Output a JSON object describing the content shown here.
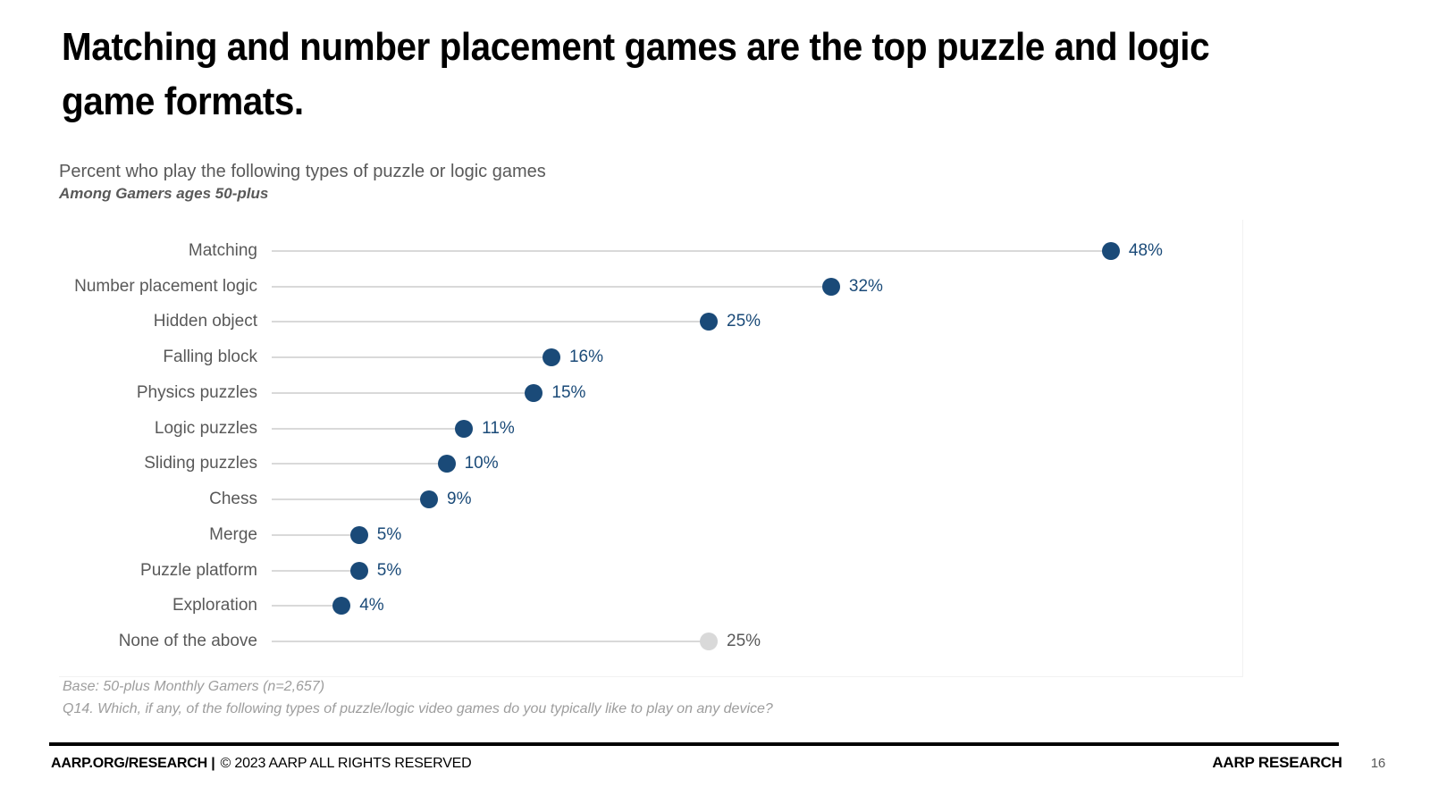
{
  "slide": {
    "title_lines": [
      "Matching and number placement games are the top puzzle and logic",
      "game formats."
    ],
    "subtitle": "Percent who play the following types of puzzle or logic games",
    "audience_note": "Among Gamers ages 50-plus"
  },
  "chart_data": {
    "type": "dot-plot",
    "title": "Percent who play the following types of puzzle or logic games",
    "subtitle": "Among Gamers ages 50-plus",
    "categories": [
      "Matching",
      "Number placement logic",
      "Hidden object",
      "Falling block",
      "Physics puzzles",
      "Logic puzzles",
      "Sliding puzzles",
      "Chess",
      "Merge",
      "Puzzle platform",
      "Exploration",
      "None of the above"
    ],
    "values": [
      48,
      32,
      25,
      16,
      15,
      11,
      10,
      9,
      5,
      5,
      4,
      25
    ],
    "value_labels": [
      "48%",
      "32%",
      "25%",
      "16%",
      "15%",
      "11%",
      "10%",
      "9%",
      "5%",
      "5%",
      "4%",
      "25%"
    ],
    "muted_categories": [
      "None of the above"
    ],
    "unit": "percent",
    "xlim": [
      0,
      50
    ],
    "grid": false,
    "legend": false,
    "colors": {
      "dot": "#1a4a78",
      "value_text": "#1a4a78",
      "muted_dot": "#d9d9d9",
      "muted_value_text": "#595959",
      "leader_line": "#d9d9d9",
      "category_text": "#595959"
    }
  },
  "footnotes": [
    "Base: 50-plus Monthly Gamers (n=2,657)",
    "Q14. Which, if any, of the following types of puzzle/logic video games do you typically like to play on any device?"
  ],
  "footer": {
    "left_bold": "AARP.ORG/RESEARCH |",
    "left_regular": "© 2023 AARP ALL RIGHTS RESERVED",
    "right_brand": "AARP RESEARCH",
    "page_number": "16"
  }
}
